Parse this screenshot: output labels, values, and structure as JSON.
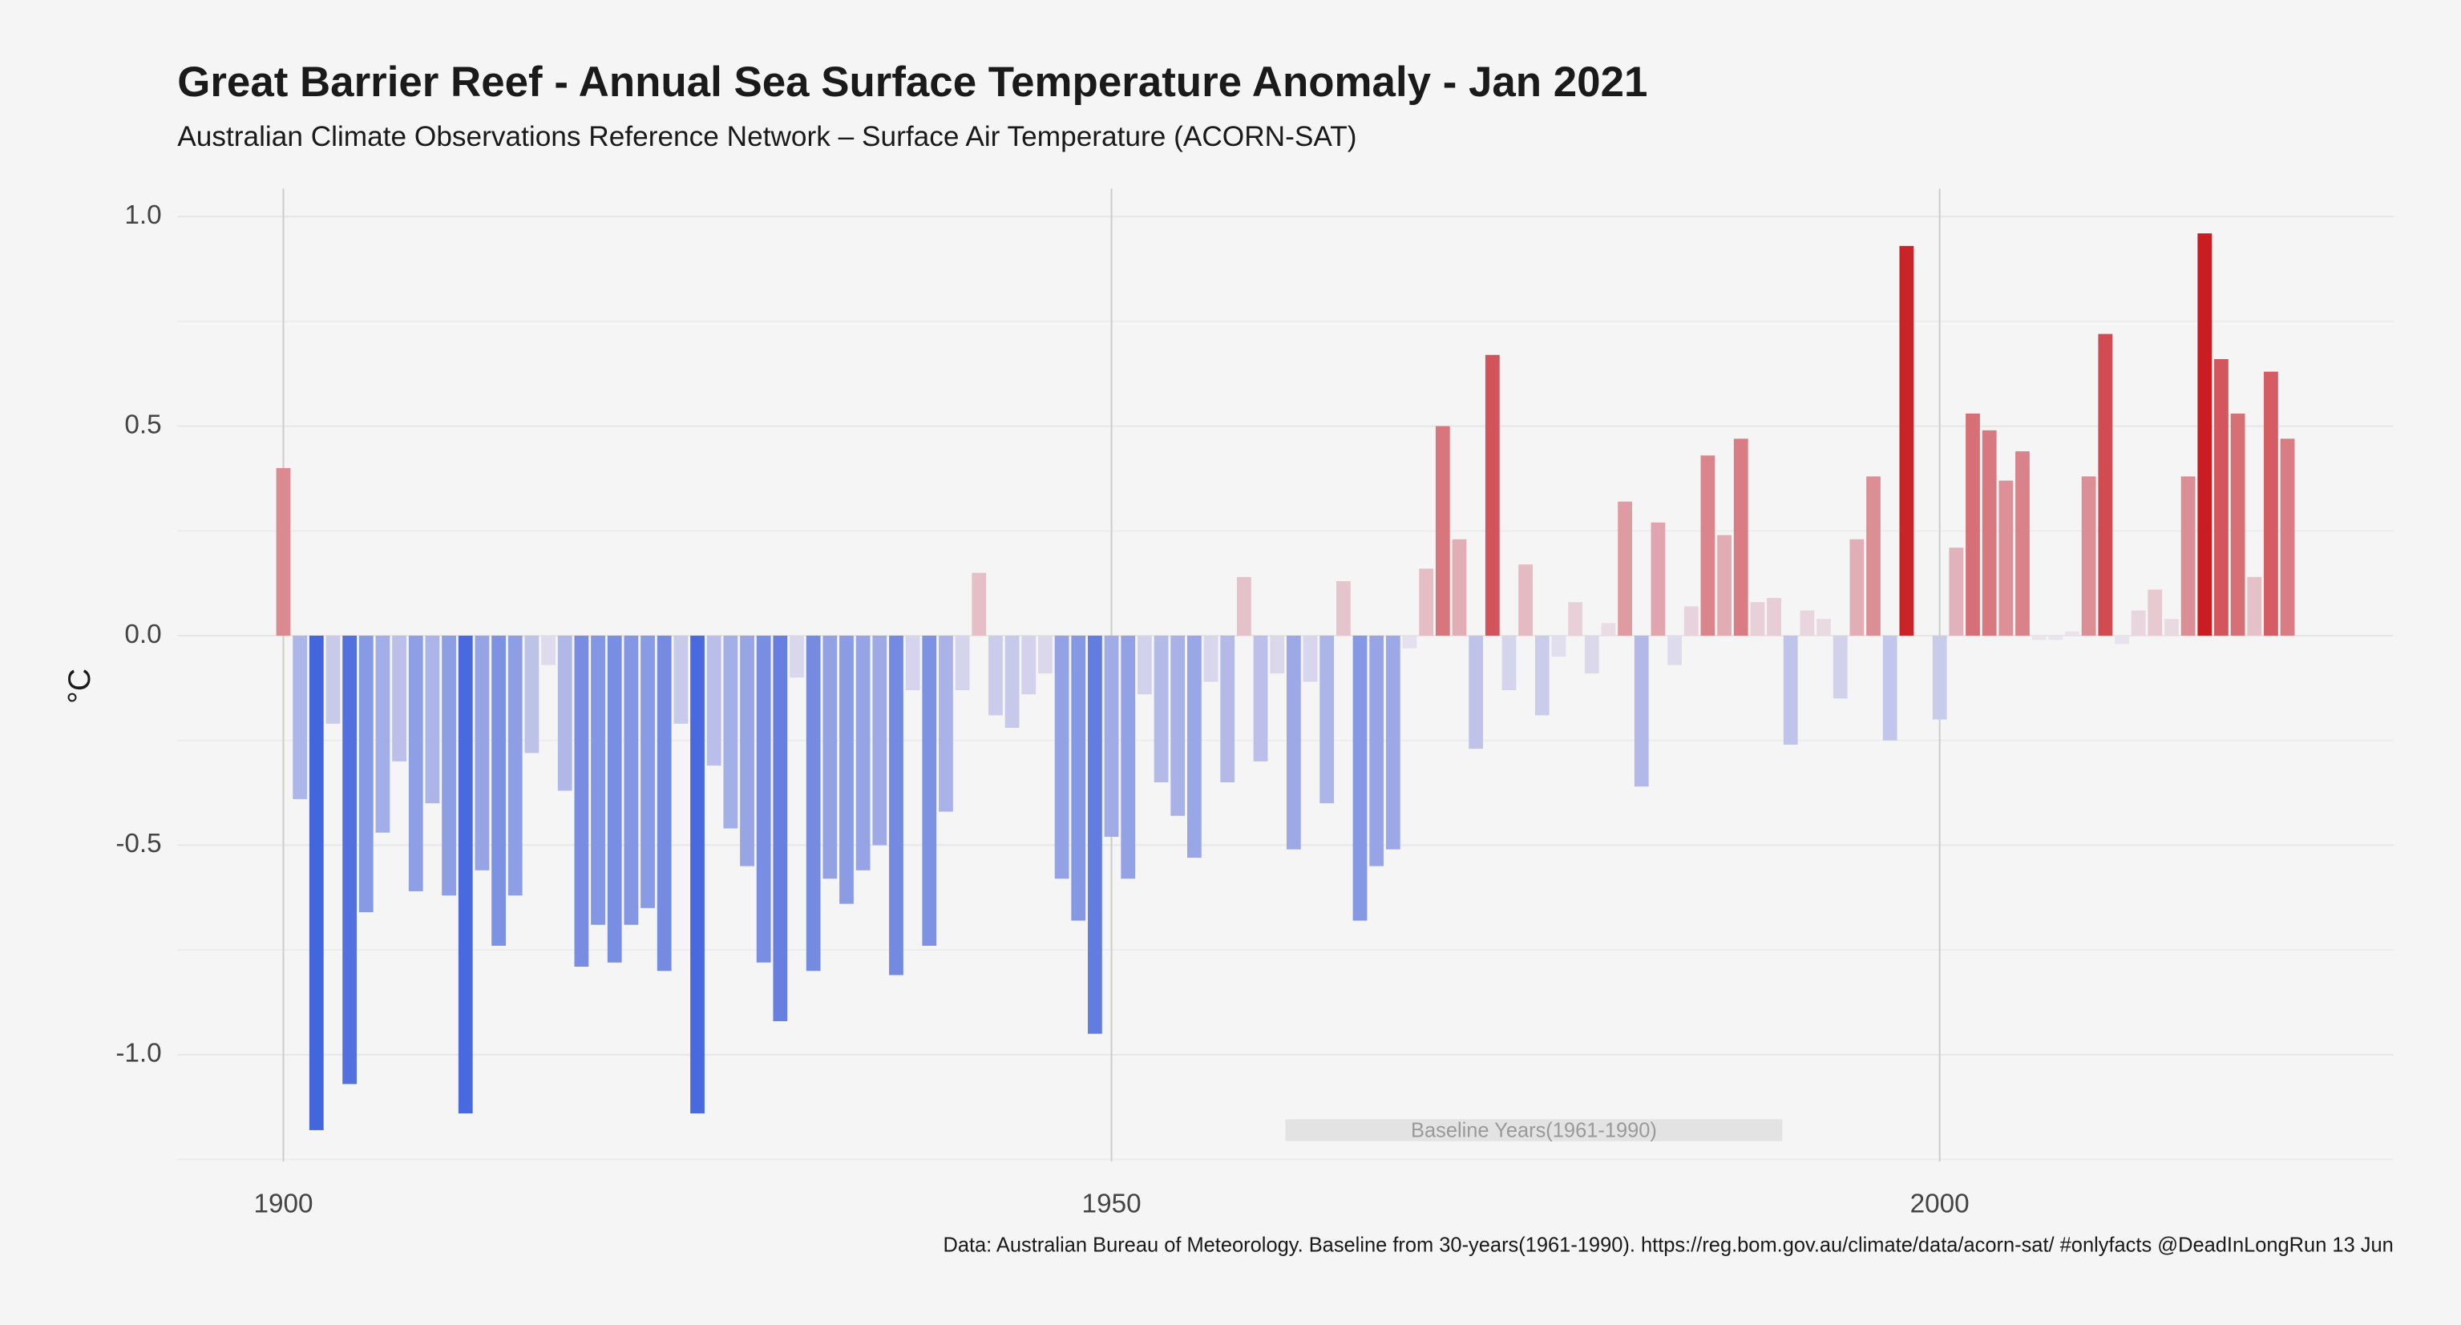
{
  "chart_data": {
    "type": "bar",
    "title": "Great Barrier Reef - Annual Sea Surface Temperature Anomaly - Jan 2021",
    "subtitle": "Australian Climate Observations Reference Network – Surface Air Temperature (ACORN-SAT)",
    "y_label": "°C",
    "caption": "Data: Australian Bureau of Meteorology. Baseline from 30-years(1961-1990). https://reg.bom.gov.au/climate/data/acorn-sat/ #onlyfacts @DeadInLongRun 13 Jun",
    "x": [
      1900,
      1901,
      1902,
      1903,
      1904,
      1905,
      1906,
      1907,
      1908,
      1909,
      1910,
      1911,
      1912,
      1913,
      1914,
      1915,
      1916,
      1917,
      1918,
      1919,
      1920,
      1921,
      1922,
      1923,
      1924,
      1925,
      1926,
      1927,
      1928,
      1929,
      1930,
      1931,
      1932,
      1933,
      1934,
      1935,
      1936,
      1937,
      1938,
      1939,
      1940,
      1941,
      1942,
      1943,
      1944,
      1945,
      1946,
      1947,
      1948,
      1949,
      1950,
      1951,
      1952,
      1953,
      1954,
      1955,
      1956,
      1957,
      1958,
      1959,
      1960,
      1961,
      1962,
      1963,
      1964,
      1965,
      1966,
      1967,
      1968,
      1969,
      1970,
      1971,
      1972,
      1973,
      1974,
      1975,
      1976,
      1977,
      1978,
      1979,
      1980,
      1981,
      1982,
      1983,
      1984,
      1985,
      1986,
      1987,
      1988,
      1989,
      1990,
      1991,
      1992,
      1993,
      1994,
      1995,
      1996,
      1997,
      1998,
      1999,
      2000,
      2001,
      2002,
      2003,
      2004,
      2005,
      2006,
      2007,
      2008,
      2009,
      2010,
      2011,
      2012,
      2013,
      2014,
      2015,
      2016,
      2017,
      2018,
      2019,
      2020,
      2021
    ],
    "values": [
      0.4,
      -0.39,
      -1.18,
      -0.21,
      -1.07,
      -0.66,
      -0.47,
      -0.3,
      -0.61,
      -0.4,
      -0.62,
      -1.14,
      -0.56,
      -0.74,
      -0.62,
      -0.28,
      -0.07,
      -0.37,
      -0.79,
      -0.69,
      -0.78,
      -0.69,
      -0.65,
      -0.8,
      -0.21,
      -1.14,
      -0.31,
      -0.46,
      -0.55,
      -0.78,
      -0.92,
      -0.1,
      -0.8,
      -0.58,
      -0.64,
      -0.56,
      -0.5,
      -0.81,
      -0.13,
      -0.74,
      -0.42,
      -0.13,
      0.15,
      -0.19,
      -0.22,
      -0.14,
      -0.09,
      -0.58,
      -0.68,
      -0.95,
      -0.48,
      -0.58,
      -0.14,
      -0.35,
      -0.43,
      -0.53,
      -0.11,
      -0.35,
      0.14,
      -0.3,
      -0.09,
      -0.51,
      -0.11,
      -0.4,
      0.13,
      -0.68,
      -0.55,
      -0.51,
      -0.03,
      0.16,
      0.5,
      0.23,
      -0.27,
      0.67,
      -0.13,
      0.17,
      -0.19,
      -0.05,
      0.08,
      -0.09,
      0.03,
      0.32,
      -0.36,
      0.27,
      -0.07,
      0.07,
      0.43,
      0.24,
      0.47,
      0.08,
      0.09,
      -0.26,
      0.06,
      0.04,
      -0.15,
      0.23,
      0.38,
      -0.25,
      0.93,
      0,
      -0.2,
      0.21,
      0.53,
      0.49,
      0.37,
      0.44,
      -0.01,
      -0.01,
      0.01,
      0.38,
      0.72,
      -0.02,
      0.06,
      0.11,
      0.04,
      0.38,
      0.96,
      0.66,
      0.53,
      0.14,
      0.63,
      0.47
    ],
    "colors": {
      "low": "#4466dd",
      "mid": "#ebe5ee",
      "high": "#c91d22"
    },
    "xlim": [
      1893.6,
      2027.4
    ],
    "ylim": [
      -1.255,
      1.067
    ],
    "xticks": [
      1900,
      1950,
      2000
    ],
    "yticks": [
      {
        "value": -1,
        "label": "-1.0"
      },
      {
        "value": -0.5,
        "label": "-0.5"
      },
      {
        "value": 0,
        "label": "0.0"
      },
      0.5,
      {
        "value": 1,
        "label": "1.0"
      }
    ],
    "grid": true,
    "baseline": {
      "label": "Baseline Years(1961-1990)",
      "start": 1961,
      "end": 1990
    }
  }
}
